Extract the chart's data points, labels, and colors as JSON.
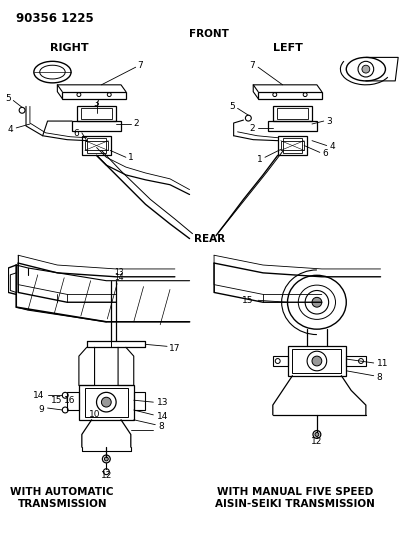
{
  "part_number": "90356 1225",
  "bg_color": "#ffffff",
  "line_color": "#000000",
  "text_color": "#000000",
  "title_front": "FRONT",
  "title_rear": "REAR",
  "label_right": "RIGHT",
  "label_left": "LEFT",
  "caption_auto": "WITH AUTOMATIC\nTRANSMISSION",
  "caption_manual": "WITH MANUAL FIVE SPEED\nAISIN-SEIKI TRANSMISSION",
  "font_main": 6.5,
  "font_title": 7.5,
  "font_label": 8.0,
  "font_partnum": 8.5,
  "figsize": [
    4.07,
    5.33
  ],
  "dpi": 100
}
